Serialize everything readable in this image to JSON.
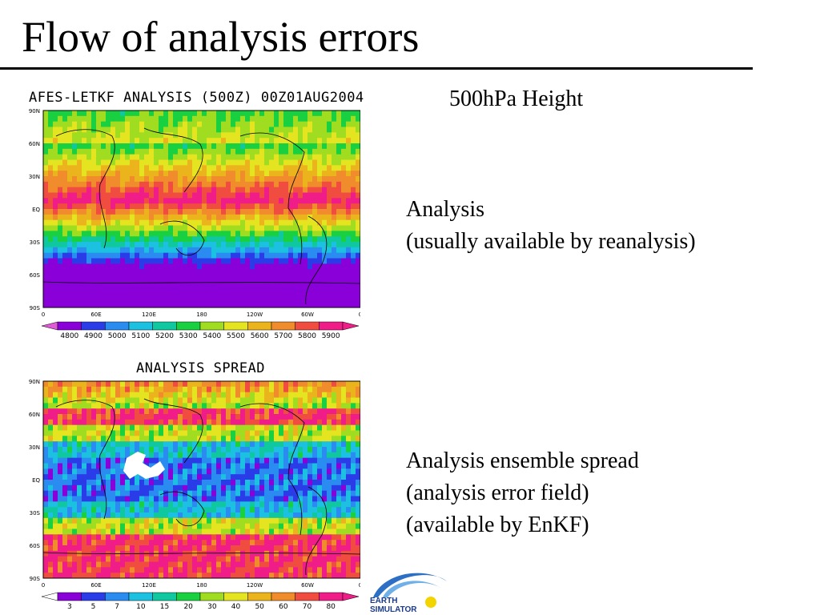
{
  "slide": {
    "title": "Flow of analysis errors"
  },
  "side_text": {
    "heading": "500hPa Height",
    "analysis_line1": "Analysis",
    "analysis_line2": "(usually available by reanalysis)",
    "spread_line1": "Analysis ensemble spread",
    "spread_line2": "(analysis error field)",
    "spread_line3": "(available by EnKF)"
  },
  "maps": {
    "lat_labels": [
      "90N",
      "60N",
      "30N",
      "EQ",
      "30S",
      "60S",
      "90S"
    ],
    "lon_labels": [
      "0",
      "60E",
      "120E",
      "180",
      "120W",
      "60W",
      "0"
    ],
    "analysis": {
      "title": "AFES-LETKF ANALYSIS (500Z) 00Z01AUG2004",
      "colorbar_labels": [
        "4800",
        "4900",
        "5000",
        "5100",
        "5200",
        "5300",
        "5400",
        "5500",
        "5600",
        "5700",
        "5800",
        "5900"
      ]
    },
    "spread": {
      "title": "ANALYSIS SPREAD",
      "colorbar_labels": [
        "3",
        "5",
        "7",
        "10",
        "15",
        "20",
        "30",
        "40",
        "50",
        "60",
        "70",
        "80"
      ]
    }
  },
  "logo": {
    "line1": "EARTH",
    "line2": "SIMULATOR"
  },
  "colors": {
    "palette": [
      "#8a00d8",
      "#2a3ce8",
      "#2a8cf0",
      "#1cc0e0",
      "#10c8a0",
      "#18d040",
      "#a0dc20",
      "#e4e420",
      "#ecb41c",
      "#f08c2c",
      "#f04c40",
      "#f01c88"
    ]
  }
}
